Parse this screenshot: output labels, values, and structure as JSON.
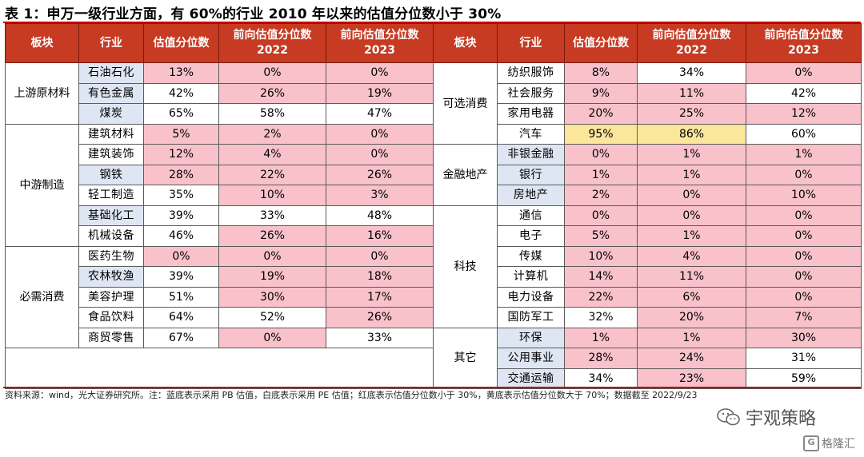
{
  "title": "表 1：申万一级行业方面，有 60%的行业 2010 年以来的估值分位数小于 30%",
  "headers": {
    "sector": "板块",
    "industry": "行业",
    "pct": "估值分位数",
    "fwd2022_line1": "前向估值分位数",
    "fwd2022_line2": "2022",
    "fwd2023_line1": "前向估值分位数",
    "fwd2023_line2": "2023"
  },
  "left_groups": [
    {
      "sector": "上游原材料",
      "rows": [
        {
          "name": "石油石化",
          "basis": "blue",
          "v": [
            "13%",
            "0%",
            "0%"
          ],
          "c": [
            "red",
            "red",
            "red"
          ]
        },
        {
          "name": "有色金属",
          "basis": "blue",
          "v": [
            "42%",
            "26%",
            "19%"
          ],
          "c": [
            "white",
            "red",
            "red"
          ]
        },
        {
          "name": "煤炭",
          "basis": "blue",
          "v": [
            "65%",
            "58%",
            "47%"
          ],
          "c": [
            "white",
            "white",
            "white"
          ]
        }
      ]
    },
    {
      "sector": "中游制造",
      "rows": [
        {
          "name": "建筑材料",
          "basis": "white",
          "v": [
            "5%",
            "2%",
            "0%"
          ],
          "c": [
            "red",
            "red",
            "red"
          ]
        },
        {
          "name": "建筑装饰",
          "basis": "white",
          "v": [
            "12%",
            "4%",
            "0%"
          ],
          "c": [
            "red",
            "red",
            "red"
          ]
        },
        {
          "name": "钢铁",
          "basis": "blue",
          "v": [
            "28%",
            "22%",
            "26%"
          ],
          "c": [
            "red",
            "red",
            "red"
          ]
        },
        {
          "name": "轻工制造",
          "basis": "white",
          "v": [
            "35%",
            "10%",
            "3%"
          ],
          "c": [
            "white",
            "red",
            "red"
          ]
        },
        {
          "name": "基础化工",
          "basis": "blue",
          "v": [
            "39%",
            "33%",
            "48%"
          ],
          "c": [
            "white",
            "white",
            "white"
          ]
        },
        {
          "name": "机械设备",
          "basis": "white",
          "v": [
            "46%",
            "26%",
            "16%"
          ],
          "c": [
            "white",
            "red",
            "red"
          ]
        }
      ]
    },
    {
      "sector": "必需消费",
      "rows": [
        {
          "name": "医药生物",
          "basis": "white",
          "v": [
            "0%",
            "0%",
            "0%"
          ],
          "c": [
            "red",
            "red",
            "red"
          ]
        },
        {
          "name": "农林牧渔",
          "basis": "blue",
          "v": [
            "39%",
            "19%",
            "18%"
          ],
          "c": [
            "white",
            "red",
            "red"
          ]
        },
        {
          "name": "美容护理",
          "basis": "white",
          "v": [
            "51%",
            "30%",
            "17%"
          ],
          "c": [
            "white",
            "red",
            "red"
          ]
        },
        {
          "name": "食品饮料",
          "basis": "white",
          "v": [
            "64%",
            "52%",
            "26%"
          ],
          "c": [
            "white",
            "white",
            "red"
          ]
        },
        {
          "name": "商贸零售",
          "basis": "white",
          "v": [
            "67%",
            "0%",
            "33%"
          ],
          "c": [
            "white",
            "red",
            "white"
          ]
        }
      ]
    }
  ],
  "right_groups": [
    {
      "sector": "可选消费",
      "rows": [
        {
          "name": "纺织服饰",
          "basis": "white",
          "v": [
            "8%",
            "34%",
            "0%"
          ],
          "c": [
            "red",
            "white",
            "red"
          ]
        },
        {
          "name": "社会服务",
          "basis": "white",
          "v": [
            "9%",
            "11%",
            "42%"
          ],
          "c": [
            "red",
            "red",
            "white"
          ]
        },
        {
          "name": "家用电器",
          "basis": "white",
          "v": [
            "20%",
            "25%",
            "12%"
          ],
          "c": [
            "red",
            "red",
            "red"
          ]
        },
        {
          "name": "汽车",
          "basis": "white",
          "v": [
            "95%",
            "86%",
            "60%"
          ],
          "c": [
            "yellow",
            "yellow",
            "white"
          ]
        }
      ]
    },
    {
      "sector": "金融地产",
      "rows": [
        {
          "name": "非银金融",
          "basis": "blue",
          "v": [
            "0%",
            "1%",
            "1%"
          ],
          "c": [
            "red",
            "red",
            "red"
          ]
        },
        {
          "name": "银行",
          "basis": "blue",
          "v": [
            "1%",
            "1%",
            "0%"
          ],
          "c": [
            "red",
            "red",
            "red"
          ]
        },
        {
          "name": "房地产",
          "basis": "blue",
          "v": [
            "2%",
            "0%",
            "10%"
          ],
          "c": [
            "red",
            "red",
            "red"
          ]
        }
      ]
    },
    {
      "sector": "科技",
      "rows": [
        {
          "name": "通信",
          "basis": "white",
          "v": [
            "0%",
            "0%",
            "0%"
          ],
          "c": [
            "red",
            "red",
            "red"
          ]
        },
        {
          "name": "电子",
          "basis": "white",
          "v": [
            "5%",
            "1%",
            "0%"
          ],
          "c": [
            "red",
            "red",
            "red"
          ]
        },
        {
          "name": "传媒",
          "basis": "white",
          "v": [
            "10%",
            "4%",
            "0%"
          ],
          "c": [
            "red",
            "red",
            "red"
          ]
        },
        {
          "name": "计算机",
          "basis": "white",
          "v": [
            "14%",
            "11%",
            "0%"
          ],
          "c": [
            "red",
            "red",
            "red"
          ]
        },
        {
          "name": "电力设备",
          "basis": "white",
          "v": [
            "22%",
            "6%",
            "0%"
          ],
          "c": [
            "red",
            "red",
            "red"
          ]
        },
        {
          "name": "国防军工",
          "basis": "white",
          "v": [
            "32%",
            "20%",
            "7%"
          ],
          "c": [
            "white",
            "red",
            "red"
          ]
        }
      ]
    },
    {
      "sector": "其它",
      "rows": [
        {
          "name": "环保",
          "basis": "blue",
          "v": [
            "1%",
            "1%",
            "30%"
          ],
          "c": [
            "red",
            "red",
            "red"
          ]
        },
        {
          "name": "公用事业",
          "basis": "blue",
          "v": [
            "28%",
            "24%",
            "31%"
          ],
          "c": [
            "red",
            "red",
            "white"
          ]
        },
        {
          "name": "交通运输",
          "basis": "blue",
          "v": [
            "34%",
            "23%",
            "59%"
          ],
          "c": [
            "white",
            "red",
            "white"
          ]
        }
      ]
    }
  ],
  "footnote": "资料来源：wind，光大证券研究所。注：蓝底表示采用 PB 估值，白底表示采用 PE 估值；红底表示估值分位数小于 30%，黄底表示估值分位数大于 70%；数据截至 2022/9/23",
  "brand": "宇观策略",
  "corner_mark": "格隆汇",
  "colors": {
    "header": "#c63b22",
    "blue_basis": "#dfe6f3",
    "red_low": "#f9c2cb",
    "yellow_high": "#fbe69c"
  }
}
